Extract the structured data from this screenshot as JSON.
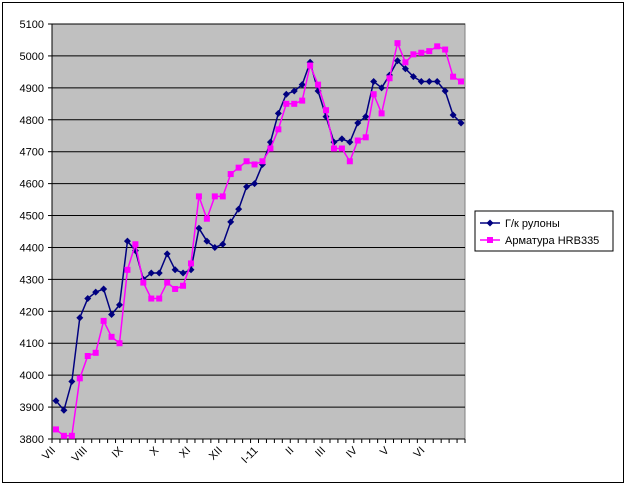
{
  "chart_data": {
    "type": "line",
    "title": "",
    "xlabel": "",
    "ylabel": "",
    "ylim": [
      3800,
      5100
    ],
    "yticks": [
      3800,
      3900,
      4000,
      4100,
      4200,
      4300,
      4400,
      4500,
      4600,
      4700,
      4800,
      4900,
      5000,
      5100
    ],
    "x_month_labels": [
      {
        "label": "VII",
        "index": 0
      },
      {
        "label": "VIII",
        "index": 4
      },
      {
        "label": "IX",
        "index": 8.5
      },
      {
        "label": "X",
        "index": 13
      },
      {
        "label": "XI",
        "index": 17
      },
      {
        "label": "XII",
        "index": 21
      },
      {
        "label": "I-11",
        "index": 25.5
      },
      {
        "label": "II",
        "index": 30
      },
      {
        "label": "III",
        "index": 34
      },
      {
        "label": "IV",
        "index": 38
      },
      {
        "label": "V",
        "index": 42
      },
      {
        "label": "VI",
        "index": 46.5
      }
    ],
    "grid": true,
    "plot_background": "#C0C0C0",
    "legend_position": "right",
    "series": [
      {
        "name": "Г/к рулоны",
        "color": "#000080",
        "marker": "diamond",
        "values": [
          3920,
          3890,
          3980,
          4180,
          4240,
          4260,
          4270,
          4190,
          4220,
          4420,
          4390,
          4300,
          4320,
          4320,
          4380,
          4330,
          4320,
          4330,
          4460,
          4420,
          4400,
          4410,
          4480,
          4520,
          4590,
          4600,
          4660,
          4730,
          4820,
          4880,
          4890,
          4910,
          4980,
          4890,
          4810,
          4730,
          4740,
          4730,
          4790,
          4810,
          4920,
          4900,
          4940,
          4985,
          4960,
          4935,
          4920,
          4920,
          4920,
          4890,
          4815,
          4790
        ]
      },
      {
        "name": "Арматура HRB335",
        "color": "#FF00FF",
        "marker": "square",
        "values": [
          3830,
          3810,
          3810,
          3990,
          4060,
          4070,
          4170,
          4120,
          4100,
          4330,
          4410,
          4290,
          4240,
          4240,
          4290,
          4270,
          4280,
          4350,
          4560,
          4490,
          4560,
          4560,
          4630,
          4650,
          4670,
          4660,
          4670,
          4710,
          4770,
          4850,
          4850,
          4860,
          4970,
          4910,
          4830,
          4710,
          4710,
          4670,
          4735,
          4745,
          4880,
          4820,
          4930,
          5040,
          4980,
          5005,
          5010,
          5015,
          5030,
          5020,
          4935,
          4920
        ]
      }
    ]
  }
}
